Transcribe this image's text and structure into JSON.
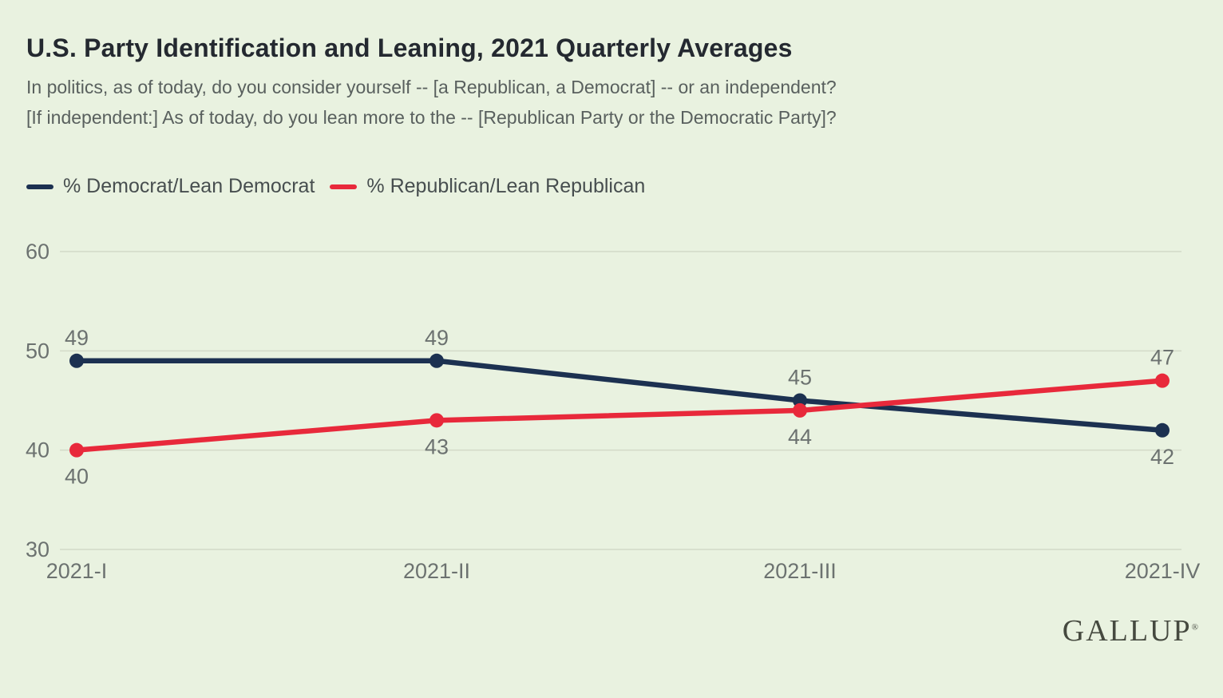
{
  "header": {
    "title": "U.S. Party Identification and Leaning, 2021 Quarterly Averages",
    "subtitle_line1": "In politics, as of today, do you consider yourself -- [a Republican, a Democrat] -- or an independent?",
    "subtitle_line2": "[If independent:] As of today, do you lean more to the -- [Republican Party or the Democratic Party]?"
  },
  "legend": {
    "items": [
      {
        "label": "% Democrat/Lean Democrat",
        "color": "#1c3151"
      },
      {
        "label": "% Republican/Lean Republican",
        "color": "#e8293b"
      }
    ]
  },
  "chart_data": {
    "type": "line",
    "title": "U.S. Party Identification and Leaning, 2021 Quarterly Averages",
    "categories": [
      "2021-I",
      "2021-II",
      "2021-III",
      "2021-IV"
    ],
    "series": [
      {
        "name": "% Democrat/Lean Democrat",
        "color": "#1c3151",
        "values": [
          49,
          49,
          45,
          42
        ],
        "label_positions": [
          "above",
          "above",
          "above",
          "below"
        ]
      },
      {
        "name": "% Republican/Lean Republican",
        "color": "#e8293b",
        "values": [
          40,
          43,
          44,
          47
        ],
        "label_positions": [
          "below",
          "below",
          "below",
          "above"
        ]
      }
    ],
    "y_ticks": [
      30,
      40,
      50,
      60
    ],
    "ylim": [
      30,
      60
    ],
    "grid": true,
    "legend_position": "top-left",
    "colors": {
      "background": "#e9f2e0",
      "gridline": "#d3dac8",
      "tick_label": "#6c7270"
    }
  },
  "footer": {
    "logo": "GALLUP",
    "registered_mark": "®"
  }
}
